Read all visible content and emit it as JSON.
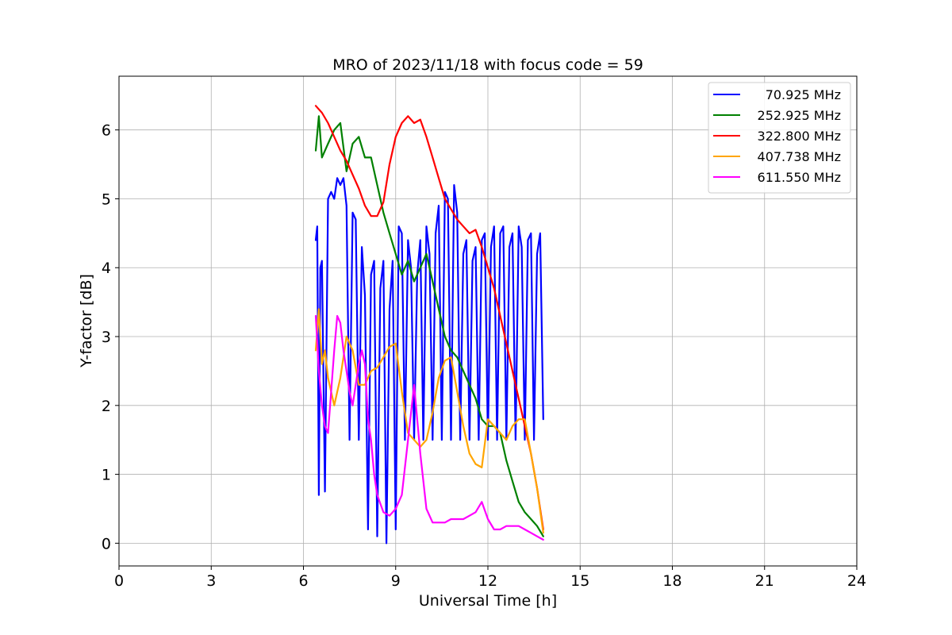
{
  "chart_data": {
    "type": "line",
    "title": "MRO of 2023/11/18 with focus code = 59",
    "xlabel": "Universal Time [h]",
    "ylabel": "Y-factor [dB]",
    "xlim": [
      0,
      24
    ],
    "ylim": [
      -0.33,
      6.78
    ],
    "xticks": [
      0,
      3,
      6,
      9,
      12,
      15,
      18,
      21,
      24
    ],
    "yticks": [
      0,
      1,
      2,
      3,
      4,
      5,
      6
    ],
    "grid": true,
    "legend_position": "upper right",
    "series": [
      {
        "name": "70.925 MHz",
        "color": "#0000ff",
        "x": [
          6.4,
          6.45,
          6.5,
          6.55,
          6.6,
          6.7,
          6.8,
          6.9,
          7.0,
          7.1,
          7.2,
          7.3,
          7.4,
          7.5,
          7.6,
          7.7,
          7.8,
          7.9,
          8.0,
          8.1,
          8.2,
          8.3,
          8.4,
          8.5,
          8.6,
          8.7,
          8.8,
          8.9,
          9.0,
          9.1,
          9.2,
          9.3,
          9.4,
          9.5,
          9.6,
          9.7,
          9.8,
          9.9,
          10.0,
          10.1,
          10.2,
          10.3,
          10.4,
          10.5,
          10.6,
          10.7,
          10.8,
          10.9,
          11.0,
          11.1,
          11.2,
          11.3,
          11.4,
          11.5,
          11.6,
          11.7,
          11.8,
          11.9,
          12.0,
          12.1,
          12.2,
          12.3,
          12.4,
          12.5,
          12.6,
          12.7,
          12.8,
          12.9,
          13.0,
          13.1,
          13.2,
          13.3,
          13.4,
          13.5,
          13.6,
          13.7,
          13.8
        ],
        "values": [
          4.4,
          4.6,
          0.7,
          4.0,
          4.1,
          0.75,
          5.0,
          5.1,
          5.0,
          5.3,
          5.2,
          5.3,
          4.9,
          1.5,
          4.8,
          4.7,
          1.5,
          4.3,
          3.6,
          0.2,
          3.9,
          4.1,
          0.1,
          3.7,
          4.1,
          0.0,
          3.4,
          4.1,
          0.2,
          4.6,
          4.5,
          1.5,
          4.4,
          4.0,
          1.5,
          3.9,
          4.4,
          1.5,
          4.6,
          4.2,
          1.5,
          4.5,
          4.9,
          1.5,
          5.1,
          5.0,
          1.5,
          5.2,
          4.8,
          1.5,
          4.2,
          4.4,
          1.5,
          4.1,
          4.3,
          1.5,
          4.4,
          4.5,
          1.5,
          4.3,
          4.6,
          1.5,
          4.5,
          4.6,
          1.5,
          4.3,
          4.5,
          1.5,
          4.6,
          4.3,
          1.5,
          4.4,
          4.5,
          1.5,
          4.2,
          4.5,
          1.8
        ]
      },
      {
        "name": "252.925 MHz",
        "color": "#008000",
        "x": [
          6.4,
          6.5,
          6.6,
          6.8,
          7.0,
          7.2,
          7.4,
          7.6,
          7.8,
          8.0,
          8.2,
          8.4,
          8.6,
          8.8,
          9.0,
          9.2,
          9.4,
          9.6,
          9.8,
          10.0,
          10.2,
          10.4,
          10.6,
          10.8,
          11.0,
          11.2,
          11.4,
          11.6,
          11.8,
          12.0,
          12.2,
          12.4,
          12.6,
          12.8,
          13.0,
          13.2,
          13.4,
          13.6,
          13.8
        ],
        "values": [
          5.7,
          6.2,
          5.6,
          5.8,
          6.0,
          6.1,
          5.4,
          5.8,
          5.9,
          5.6,
          5.6,
          5.2,
          4.8,
          4.5,
          4.2,
          3.9,
          4.1,
          3.8,
          4.0,
          4.2,
          3.8,
          3.4,
          3.0,
          2.8,
          2.7,
          2.5,
          2.3,
          2.1,
          1.8,
          1.7,
          1.7,
          1.6,
          1.2,
          0.9,
          0.6,
          0.45,
          0.35,
          0.25,
          0.1
        ]
      },
      {
        "name": "322.800 MHz",
        "color": "#ff0000",
        "x": [
          6.4,
          6.6,
          6.8,
          7.0,
          7.2,
          7.4,
          7.6,
          7.8,
          8.0,
          8.2,
          8.4,
          8.6,
          8.8,
          9.0,
          9.2,
          9.4,
          9.6,
          9.8,
          10.0,
          10.2,
          10.4,
          10.6,
          10.8,
          11.0,
          11.2,
          11.4,
          11.6,
          11.8,
          12.0,
          12.2,
          12.4,
          12.6,
          12.8,
          13.0,
          13.2,
          13.4,
          13.6,
          13.8
        ],
        "values": [
          6.35,
          6.25,
          6.1,
          5.9,
          5.7,
          5.55,
          5.35,
          5.15,
          4.9,
          4.75,
          4.75,
          4.95,
          5.5,
          5.9,
          6.1,
          6.2,
          6.1,
          6.15,
          5.9,
          5.6,
          5.3,
          5.0,
          4.85,
          4.7,
          4.6,
          4.5,
          4.55,
          4.3,
          4.0,
          3.7,
          3.3,
          2.9,
          2.5,
          2.1,
          1.7,
          1.3,
          0.8,
          0.2
        ]
      },
      {
        "name": "407.738 MHz",
        "color": "#ffa500",
        "x": [
          6.4,
          6.5,
          6.6,
          6.7,
          6.8,
          7.0,
          7.2,
          7.4,
          7.6,
          7.8,
          8.0,
          8.2,
          8.4,
          8.6,
          8.8,
          9.0,
          9.2,
          9.4,
          9.6,
          9.8,
          10.0,
          10.2,
          10.4,
          10.6,
          10.8,
          11.0,
          11.2,
          11.4,
          11.6,
          11.8,
          12.0,
          12.2,
          12.4,
          12.6,
          12.8,
          13.0,
          13.2,
          13.4,
          13.6,
          13.8
        ],
        "values": [
          2.8,
          3.4,
          2.6,
          2.8,
          2.4,
          2.0,
          2.4,
          3.0,
          2.8,
          2.3,
          2.3,
          2.5,
          2.55,
          2.7,
          2.85,
          2.9,
          2.2,
          1.6,
          1.5,
          1.4,
          1.5,
          1.9,
          2.4,
          2.65,
          2.7,
          2.2,
          1.7,
          1.3,
          1.15,
          1.1,
          1.8,
          1.7,
          1.6,
          1.5,
          1.7,
          1.8,
          1.8,
          1.3,
          0.8,
          0.15
        ]
      },
      {
        "name": "611.550 MHz",
        "color": "#ff00ff",
        "x": [
          6.4,
          6.5,
          6.6,
          6.7,
          6.8,
          6.9,
          7.0,
          7.1,
          7.2,
          7.3,
          7.4,
          7.5,
          7.6,
          7.7,
          7.8,
          7.9,
          8.0,
          8.1,
          8.2,
          8.3,
          8.4,
          8.6,
          8.8,
          9.0,
          9.2,
          9.4,
          9.6,
          9.8,
          10.0,
          10.2,
          10.4,
          10.6,
          10.8,
          11.0,
          11.2,
          11.4,
          11.6,
          11.8,
          12.0,
          12.2,
          12.4,
          12.6,
          12.8,
          13.0,
          13.2,
          13.4,
          13.6,
          13.8
        ],
        "values": [
          3.3,
          2.5,
          2.0,
          1.7,
          1.6,
          2.2,
          2.8,
          3.3,
          3.2,
          2.8,
          2.5,
          2.2,
          2.0,
          2.3,
          2.6,
          2.8,
          2.6,
          1.8,
          1.5,
          1.0,
          0.7,
          0.45,
          0.4,
          0.5,
          0.7,
          1.5,
          2.3,
          1.3,
          0.5,
          0.3,
          0.3,
          0.3,
          0.35,
          0.35,
          0.35,
          0.4,
          0.45,
          0.6,
          0.35,
          0.2,
          0.2,
          0.25,
          0.25,
          0.25,
          0.2,
          0.15,
          0.1,
          0.05
        ]
      }
    ]
  }
}
